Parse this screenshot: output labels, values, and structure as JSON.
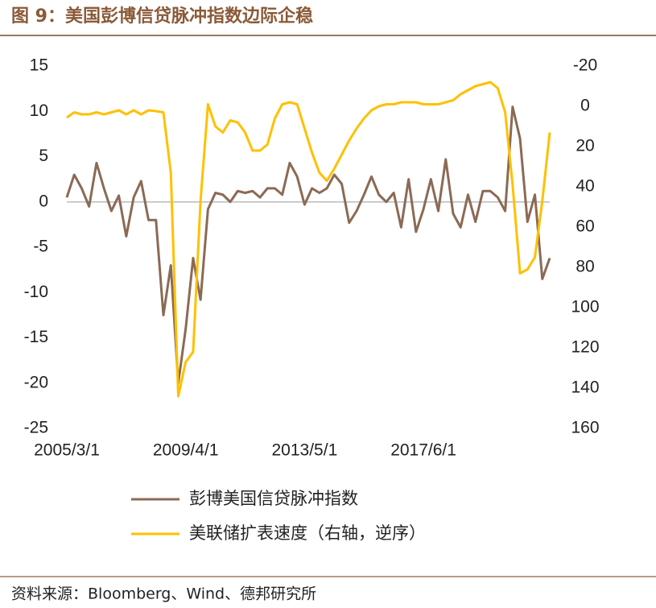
{
  "chart_data": {
    "type": "line",
    "title": "图 9：美国彭博信贷脉冲指数边际企稳",
    "source": "资料来源：Bloomberg、Wind、德邦研究所",
    "categories": [
      "2005/3/1",
      null,
      null,
      null,
      null,
      null,
      null,
      null,
      null,
      null,
      null,
      null,
      null,
      null,
      null,
      null,
      "2009/4/1",
      null,
      null,
      null,
      null,
      null,
      null,
      null,
      null,
      null,
      null,
      null,
      null,
      null,
      null,
      null,
      "2013/5/1",
      null,
      null,
      null,
      null,
      null,
      null,
      null,
      null,
      null,
      null,
      null,
      null,
      null,
      null,
      null,
      "2017/6/1",
      null,
      null,
      null,
      null,
      null,
      null,
      null,
      null,
      null,
      null,
      null,
      null,
      null,
      null,
      null,
      null,
      null
    ],
    "ylim": [
      -25,
      15
    ],
    "yticks": [
      -25,
      -20,
      -15,
      -10,
      -5,
      0,
      5,
      10,
      15
    ],
    "y2lim": [
      160,
      -20
    ],
    "y2ticks": [
      -20,
      0,
      20,
      40,
      60,
      80,
      100,
      120,
      140,
      160
    ],
    "y2_reversed": true,
    "zero_line": true,
    "series": [
      {
        "name": "彭博美国信贷脉冲指数",
        "color": "#8b6a55",
        "values": [
          0.5,
          3,
          1.5,
          -0.5,
          4.3,
          1.5,
          -1,
          0.7,
          -3.8,
          0.5,
          2.3,
          -2,
          -2,
          -12.5,
          -7,
          -20,
          -14,
          -6.2,
          -10.8,
          -0.8,
          1,
          0.8,
          0,
          1.2,
          1,
          1.2,
          0.5,
          1.5,
          1.5,
          0.8,
          4.3,
          2.8,
          -0.3,
          1.5,
          1,
          1.5,
          3,
          2,
          -2.3,
          -1,
          0.8,
          2.8,
          0.8,
          0,
          1,
          -2.8,
          2.5,
          -3.3,
          -0.8,
          2.5,
          -1,
          4.7,
          -1.3,
          -2.8,
          0.8,
          -2.2,
          1.2,
          1.2,
          0.5,
          -1,
          10.5,
          7,
          -2.2,
          0.8,
          -8.5,
          -6.2
        ]
      },
      {
        "name": "美联储扩表速度（右轴，逆序）",
        "color": "#ffc000",
        "axis": "y2",
        "values": [
          5.6,
          3,
          4,
          4,
          3,
          4,
          3,
          2,
          4,
          2,
          4,
          2,
          2.4,
          3,
          33,
          144,
          127,
          122,
          47,
          -1,
          10,
          13,
          7,
          8,
          13,
          22,
          22,
          19,
          6,
          -1,
          -2,
          -1,
          11,
          23,
          33,
          37,
          31,
          24,
          17,
          11,
          6,
          2,
          0,
          -1,
          -1,
          -2,
          -2,
          -2,
          -1,
          -1,
          -1,
          -2,
          -3,
          -6,
          -8,
          -10,
          -11,
          -12,
          -9,
          3,
          39,
          83,
          81,
          75,
          47,
          13
        ]
      }
    ]
  }
}
